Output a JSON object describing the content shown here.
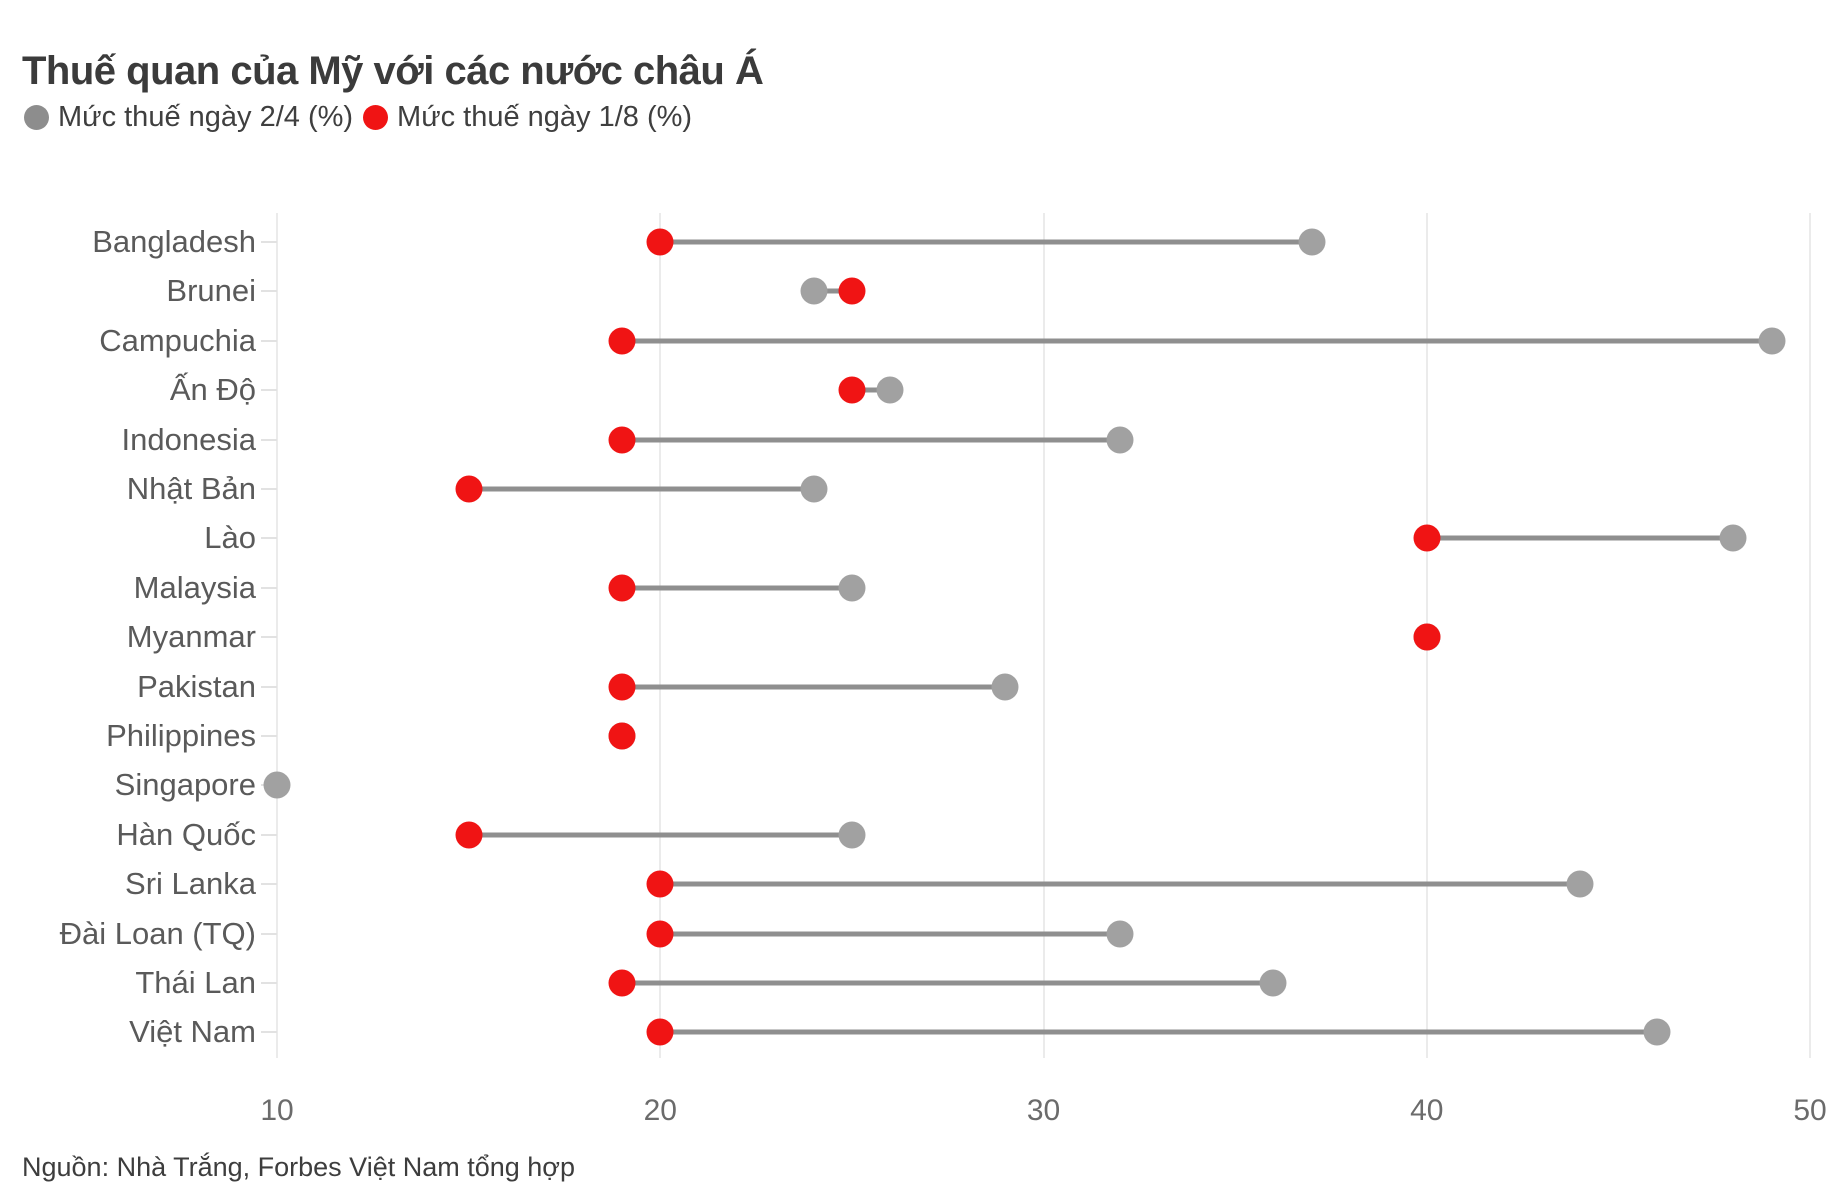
{
  "header": {
    "title": "Thuế quan của Mỹ với các nước châu Á",
    "legend": [
      {
        "label": "Mức thuế ngày 2/4 (%)",
        "color": "#8d8d8d"
      },
      {
        "label": "Mức thuế ngày 1/8 (%)",
        "color": "#f01414"
      }
    ]
  },
  "footer": {
    "source": "Nguồn: Nhà Trắng, Forbes Việt Nam tổng hợp"
  },
  "chart_data": {
    "type": "scatter",
    "subtype": "dumbbell",
    "title": "Thuế quan của Mỹ với các nước châu Á",
    "categories": [
      "Bangladesh",
      "Brunei",
      "Campuchia",
      "Ấn Độ",
      "Indonesia",
      "Nhật Bản",
      "Lào",
      "Malaysia",
      "Myanmar",
      "Pakistan",
      "Philippines",
      "Singapore",
      "Hàn Quốc",
      "Sri Lanka",
      "Đài Loan (TQ)",
      "Thái Lan",
      "Việt Nam"
    ],
    "series": [
      {
        "name": "Mức thuế ngày 2/4 (%)",
        "color": "#a1a1a1",
        "values": [
          37,
          24,
          49,
          26,
          32,
          24,
          48,
          25,
          40,
          29,
          19,
          10,
          25,
          44,
          32,
          36,
          46
        ]
      },
      {
        "name": "Mức thuế ngày 1/8 (%)",
        "color": "#f01414",
        "values": [
          20,
          25,
          19,
          25,
          19,
          15,
          40,
          19,
          40,
          19,
          19,
          null,
          15,
          20,
          20,
          19,
          20
        ]
      }
    ],
    "connector_color": "#8f8f8f",
    "xlabel": "",
    "ylabel": "",
    "xlim": [
      10,
      50
    ],
    "x_ticks": [
      10,
      20,
      30,
      40,
      50
    ],
    "grid": "vertical",
    "legend_position": "top-left",
    "source": "Nguồn: Nhà Trắng, Forbes Việt Nam tổng hợp"
  }
}
